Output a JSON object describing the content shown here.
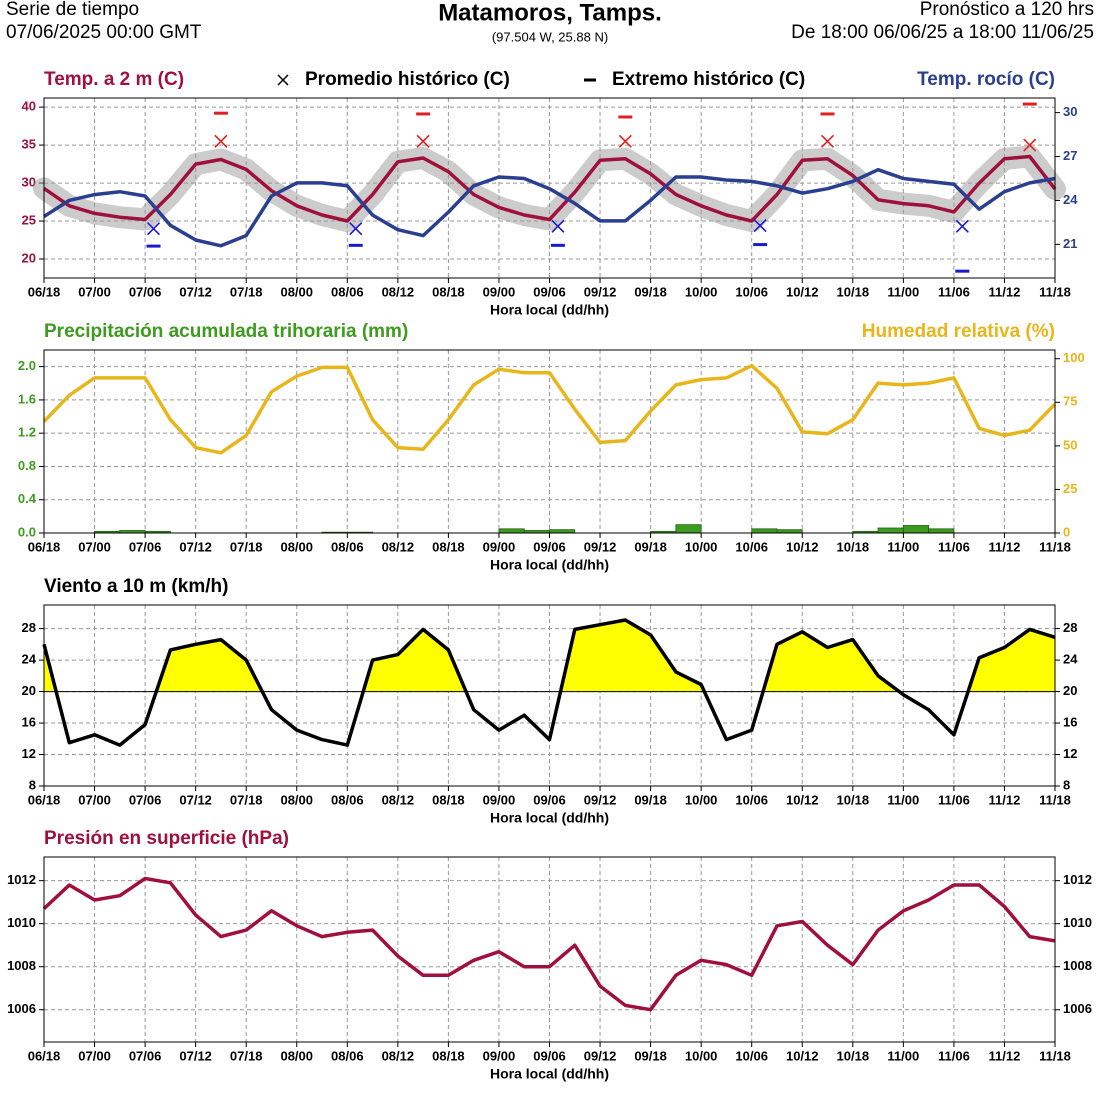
{
  "header": {
    "left1": "Serie de tiempo",
    "left2": "07/06/2025 00:00 GMT",
    "title": "Matamoros,  Tamps.",
    "subtitle": "(97.504 W, 25.88 N)",
    "right1": "Pronóstico a 120 hrs",
    "right2": "De 18:00 06/06/25 a 18:00 11/06/25"
  },
  "chart_data": [
    {
      "type": "line",
      "title": "Temp. a 2 m (C)",
      "title_color": "#a0103c",
      "y2title": "Temp. rocío (C)",
      "y2title_color": "#2a3f8f",
      "xlabel": "Hora local (dd/hh)",
      "grid": true,
      "x": [
        0,
        3,
        6,
        9,
        12,
        15,
        18,
        21,
        24,
        27,
        30,
        33,
        36,
        39,
        42,
        45,
        48,
        51,
        54,
        57,
        60,
        63,
        66,
        69,
        72,
        75,
        78,
        81,
        84,
        87,
        90,
        93,
        96,
        99,
        102,
        105,
        108,
        111,
        114,
        117,
        120
      ],
      "xlim": [
        0,
        120
      ],
      "xticks": [
        {
          "value": 0,
          "label": "06/18"
        },
        {
          "value": 6,
          "label": "07/00"
        },
        {
          "value": 12,
          "label": "07/06"
        },
        {
          "value": 18,
          "label": "07/12"
        },
        {
          "value": 24,
          "label": "07/18"
        },
        {
          "value": 30,
          "label": "08/00"
        },
        {
          "value": 36,
          "label": "08/06"
        },
        {
          "value": 42,
          "label": "08/12"
        },
        {
          "value": 48,
          "label": "08/18"
        },
        {
          "value": 54,
          "label": "09/00"
        },
        {
          "value": 60,
          "label": "09/06"
        },
        {
          "value": 66,
          "label": "09/12"
        },
        {
          "value": 72,
          "label": "09/18"
        },
        {
          "value": 78,
          "label": "10/00"
        },
        {
          "value": 84,
          "label": "10/06"
        },
        {
          "value": 90,
          "label": "10/12"
        },
        {
          "value": 96,
          "label": "10/18"
        },
        {
          "value": 102,
          "label": "11/00"
        },
        {
          "value": 108,
          "label": "11/06"
        },
        {
          "value": 114,
          "label": "11/12"
        },
        {
          "value": 120,
          "label": "11/18"
        }
      ],
      "ylim": [
        17.5,
        41.2
      ],
      "yticks": [
        20,
        25,
        30,
        35,
        40
      ],
      "ytick_color": "#a0103c",
      "y2lim": [
        18.7,
        31
      ],
      "y2ticks": [
        21,
        24,
        27,
        30
      ],
      "y2tick_color": "#2a3f8f",
      "series": [
        {
          "color": "#a0103c",
          "band": true,
          "values": [
            29.3,
            27,
            26,
            25.5,
            25.2,
            28.5,
            32.5,
            33.1,
            31.8,
            29,
            27,
            25.8,
            25,
            28.5,
            32.8,
            33.3,
            31.5,
            28.5,
            26.8,
            25.8,
            25.2,
            28.8,
            33,
            33.2,
            31.2,
            28.5,
            27,
            25.8,
            25,
            28.5,
            33,
            33.2,
            31,
            27.8,
            27.3,
            27,
            26.2,
            30,
            33.2,
            33.5,
            29.2
          ]
        },
        {
          "color": "#2a3f8f",
          "axis": "y2",
          "values": [
            22.9,
            24,
            24.4,
            24.6,
            24.3,
            22.3,
            21.3,
            20.9,
            21.6,
            24.3,
            25.2,
            25.2,
            25,
            23,
            22,
            21.6,
            23.2,
            25,
            25.6,
            25.5,
            24.8,
            23.8,
            22.6,
            22.6,
            24,
            25.6,
            25.6,
            25.4,
            25.3,
            25,
            24.5,
            24.8,
            25.3,
            26.1,
            25.5,
            25.3,
            25.1,
            23.4,
            24.6,
            25.2,
            25.5
          ]
        }
      ],
      "markers": [
        {
          "name": "Promedio histórico (C)",
          "symbol": "x",
          "x": [
            13,
            21,
            37,
            45,
            61,
            69,
            85,
            93,
            109,
            117
          ],
          "values": [
            24,
            35.5,
            24,
            35.5,
            24.3,
            35.5,
            24.4,
            35.5,
            24.3,
            35
          ],
          "colors": [
            "#1a1ad0",
            "#e02020",
            "#1a1ad0",
            "#e02020",
            "#1a1ad0",
            "#e02020",
            "#1a1ad0",
            "#e02020",
            "#1a1ad0",
            "#e02020"
          ]
        },
        {
          "name": "Extremo histórico (C)",
          "symbol": "dash",
          "x": [
            13,
            21,
            37,
            45,
            61,
            69,
            85,
            93,
            109,
            117
          ],
          "values": [
            21.7,
            39.2,
            21.8,
            39.1,
            21.8,
            38.7,
            21.9,
            39.1,
            18.4,
            40.4
          ],
          "colors": [
            "#1a1ad0",
            "#e02020",
            "#1a1ad0",
            "#e02020",
            "#1a1ad0",
            "#e02020",
            "#1a1ad0",
            "#e02020",
            "#1a1ad0",
            "#e02020"
          ]
        }
      ]
    },
    {
      "type": "combo",
      "title": "Precipitación acumulada trihoraria (mm)",
      "title_color": "#3d9b1f",
      "y2title": "Humedad relativa (%)",
      "y2title_color": "#e8b61a",
      "xlabel": "Hora local (dd/hh)",
      "grid": true,
      "x": [
        0,
        3,
        6,
        9,
        12,
        15,
        18,
        21,
        24,
        27,
        30,
        33,
        36,
        39,
        42,
        45,
        48,
        51,
        54,
        57,
        60,
        63,
        66,
        69,
        72,
        75,
        78,
        81,
        84,
        87,
        90,
        93,
        96,
        99,
        102,
        105,
        108,
        111,
        114,
        117,
        120
      ],
      "xlim": [
        0,
        120
      ],
      "xticks": [
        {
          "value": 0,
          "label": "06/18"
        },
        {
          "value": 6,
          "label": "07/00"
        },
        {
          "value": 12,
          "label": "07/06"
        },
        {
          "value": 18,
          "label": "07/12"
        },
        {
          "value": 24,
          "label": "07/18"
        },
        {
          "value": 30,
          "label": "08/00"
        },
        {
          "value": 36,
          "label": "08/06"
        },
        {
          "value": 42,
          "label": "08/12"
        },
        {
          "value": 48,
          "label": "08/18"
        },
        {
          "value": 54,
          "label": "09/00"
        },
        {
          "value": 60,
          "label": "09/06"
        },
        {
          "value": 66,
          "label": "09/12"
        },
        {
          "value": 72,
          "label": "09/18"
        },
        {
          "value": 78,
          "label": "10/00"
        },
        {
          "value": 84,
          "label": "10/06"
        },
        {
          "value": 90,
          "label": "10/12"
        },
        {
          "value": 96,
          "label": "10/18"
        },
        {
          "value": 102,
          "label": "11/00"
        },
        {
          "value": 108,
          "label": "11/06"
        },
        {
          "value": 114,
          "label": "11/12"
        },
        {
          "value": 120,
          "label": "11/18"
        }
      ],
      "ylim": [
        0,
        2.2
      ],
      "yticks": [
        {
          "value": 0,
          "label": "0.0"
        },
        0.4,
        0.8,
        1.2,
        1.6,
        {
          "value": 2,
          "label": "2.0"
        }
      ],
      "ytick_color": "#3d9b1f",
      "y2lim": [
        0,
        105
      ],
      "y2ticks": [
        0,
        25,
        50,
        75,
        100
      ],
      "y2tick_color": "#e8b61a",
      "bars": {
        "color": "#3d9b1f",
        "bins": [
          0,
          3,
          6,
          9,
          12,
          15,
          18,
          21,
          24,
          27,
          30,
          33,
          36,
          39,
          42,
          45,
          48,
          51,
          54,
          57,
          60,
          63,
          66,
          69,
          72,
          75,
          78,
          81,
          84,
          87,
          90,
          93,
          96,
          99,
          102,
          105,
          108,
          111,
          114,
          117,
          120
        ],
        "values": [
          0,
          0,
          0.02,
          0.03,
          0.02,
          0,
          0,
          0,
          0,
          0,
          0,
          0.01,
          0.01,
          0,
          0,
          0,
          0,
          0,
          0.05,
          0.03,
          0.04,
          0,
          0,
          0,
          0.02,
          0.1,
          0,
          0,
          0.05,
          0.04,
          0,
          0,
          0.02,
          0.06,
          0.09,
          0.05,
          0,
          0,
          0,
          0
        ]
      },
      "series": [
        {
          "color": "#e8b61a",
          "axis": "y2",
          "values": [
            64,
            79,
            89,
            89,
            89,
            65,
            49,
            46,
            56,
            81,
            90,
            95,
            95,
            65,
            49,
            48,
            65,
            85,
            94,
            92,
            92,
            71,
            52,
            53,
            70,
            85,
            88,
            89,
            96,
            83,
            58,
            57,
            65,
            86,
            85,
            86,
            89,
            60,
            56,
            59,
            74
          ]
        }
      ]
    },
    {
      "type": "area",
      "title": "Viento a 10 m (km/h)",
      "title_color": "#000000",
      "xlabel": "Hora local (dd/hh)",
      "grid": true,
      "mirror_yticks": true,
      "fill_above": 20,
      "fill_color": "#ffff00",
      "x": [
        0,
        3,
        6,
        9,
        12,
        15,
        18,
        21,
        24,
        27,
        30,
        33,
        36,
        39,
        42,
        45,
        48,
        51,
        54,
        57,
        60,
        63,
        66,
        69,
        72,
        75,
        78,
        81,
        84,
        87,
        90,
        93,
        96,
        99,
        102,
        105,
        108,
        111,
        114,
        117,
        120
      ],
      "xlim": [
        0,
        120
      ],
      "xticks": [
        {
          "value": 0,
          "label": "06/18"
        },
        {
          "value": 6,
          "label": "07/00"
        },
        {
          "value": 12,
          "label": "07/06"
        },
        {
          "value": 18,
          "label": "07/12"
        },
        {
          "value": 24,
          "label": "07/18"
        },
        {
          "value": 30,
          "label": "08/00"
        },
        {
          "value": 36,
          "label": "08/06"
        },
        {
          "value": 42,
          "label": "08/12"
        },
        {
          "value": 48,
          "label": "08/18"
        },
        {
          "value": 54,
          "label": "09/00"
        },
        {
          "value": 60,
          "label": "09/06"
        },
        {
          "value": 66,
          "label": "09/12"
        },
        {
          "value": 72,
          "label": "09/18"
        },
        {
          "value": 78,
          "label": "10/00"
        },
        {
          "value": 84,
          "label": "10/06"
        },
        {
          "value": 90,
          "label": "10/12"
        },
        {
          "value": 96,
          "label": "10/18"
        },
        {
          "value": 102,
          "label": "11/00"
        },
        {
          "value": 108,
          "label": "11/06"
        },
        {
          "value": 114,
          "label": "11/12"
        },
        {
          "value": 120,
          "label": "11/18"
        }
      ],
      "ylim": [
        8,
        31
      ],
      "yticks": [
        8,
        12,
        16,
        20,
        24,
        28
      ],
      "ytick_color": "#000000",
      "series": [
        {
          "color": "#000000",
          "values": [
            26,
            13.5,
            14.5,
            13.2,
            15.8,
            25.3,
            26,
            26.6,
            24,
            17.7,
            15.1,
            13.9,
            13.2,
            24,
            24.7,
            27.9,
            25.3,
            17.7,
            15.1,
            17,
            13.9,
            27.9,
            28.5,
            29.1,
            27.2,
            22.5,
            20.9,
            13.9,
            15.1,
            26,
            27.6,
            25.6,
            26.6,
            22,
            19.6,
            17.7,
            14.5,
            24.3,
            25.6,
            27.9,
            26.9
          ]
        }
      ]
    },
    {
      "type": "line",
      "title": "Presión en superficie (hPa)",
      "title_color": "#a0103c",
      "xlabel": "Hora local (dd/hh)",
      "grid": true,
      "mirror_yticks": true,
      "x": [
        0,
        3,
        6,
        9,
        12,
        15,
        18,
        21,
        24,
        27,
        30,
        33,
        36,
        39,
        42,
        45,
        48,
        51,
        54,
        57,
        60,
        63,
        66,
        69,
        72,
        75,
        78,
        81,
        84,
        87,
        90,
        93,
        96,
        99,
        102,
        105,
        108,
        111,
        114,
        117,
        120
      ],
      "xlim": [
        0,
        120
      ],
      "xticks": [
        {
          "value": 0,
          "label": "06/18"
        },
        {
          "value": 6,
          "label": "07/00"
        },
        {
          "value": 12,
          "label": "07/06"
        },
        {
          "value": 18,
          "label": "07/12"
        },
        {
          "value": 24,
          "label": "07/18"
        },
        {
          "value": 30,
          "label": "08/00"
        },
        {
          "value": 36,
          "label": "08/06"
        },
        {
          "value": 42,
          "label": "08/12"
        },
        {
          "value": 48,
          "label": "08/18"
        },
        {
          "value": 54,
          "label": "09/00"
        },
        {
          "value": 60,
          "label": "09/06"
        },
        {
          "value": 66,
          "label": "09/12"
        },
        {
          "value": 72,
          "label": "09/18"
        },
        {
          "value": 78,
          "label": "10/00"
        },
        {
          "value": 84,
          "label": "10/06"
        },
        {
          "value": 90,
          "label": "10/12"
        },
        {
          "value": 96,
          "label": "10/18"
        },
        {
          "value": 102,
          "label": "11/00"
        },
        {
          "value": 108,
          "label": "11/06"
        },
        {
          "value": 114,
          "label": "11/12"
        },
        {
          "value": 120,
          "label": "11/18"
        }
      ],
      "ylim": [
        1004.5,
        1013.1
      ],
      "yticks": [
        1006,
        1008,
        1010,
        1012
      ],
      "ytick_color": "#000000",
      "series": [
        {
          "color": "#a0103c",
          "values": [
            1010.7,
            1011.8,
            1011.1,
            1011.3,
            1012.1,
            1011.9,
            1010.4,
            1009.4,
            1009.7,
            1010.6,
            1009.9,
            1009.4,
            1009.6,
            1009.7,
            1008.5,
            1007.6,
            1007.6,
            1008.3,
            1008.7,
            1008,
            1008,
            1009,
            1007.1,
            1006.2,
            1006,
            1007.6,
            1008.3,
            1008.1,
            1007.6,
            1009.9,
            1010.1,
            1009,
            1008.1,
            1009.7,
            1010.6,
            1011.1,
            1011.8,
            1011.8,
            1010.8,
            1009.4,
            1009.2
          ]
        }
      ]
    }
  ]
}
